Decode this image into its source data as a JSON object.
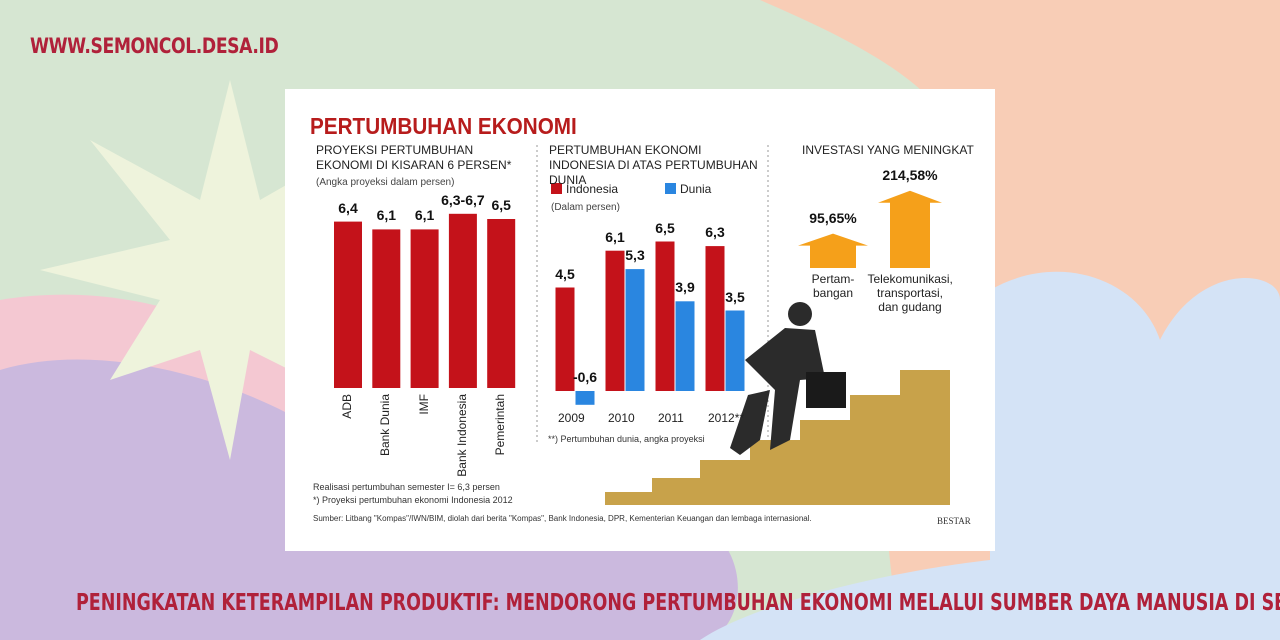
{
  "site": "WWW.SEMONCOL.DESA.ID",
  "headline": "PENINGKATAN KETERAMPILAN PRODUKTIF: MENDORONG PERTUMBUHAN EKONOMI MELALUI SUMBER DAYA MANUSIA DI SEMONCOL",
  "infographic_title": "PERTUMBUHAN EKONOMI",
  "notes": [
    "Realisasi pertumbuhan semester I= 6,3 persen",
    "*) Proyeksi pertumbuhan ekonomi Indonesia 2012"
  ],
  "source": "Sumber: Litbang \"Kompas\"/IWN/BIM, diolah dari berita \"Kompas\", Bank Indonesia, DPR, Kementerian Keuangan dan lembaga internasional.",
  "credit": "BESTAR",
  "chart_data": [
    {
      "type": "bar",
      "title": "PROYEKSI PERTUMBUHAN EKONOMI DI KISARAN 6 PERSEN*",
      "subtitle": "(Angka proyeksi dalam persen)",
      "categories": [
        "ADB",
        "Bank Dunia",
        "IMF",
        "Bank Indonesia",
        "Pemerintah"
      ],
      "values": [
        6.4,
        6.1,
        6.1,
        6.7,
        6.5
      ],
      "value_labels": [
        "6,4",
        "6,1",
        "6,1",
        "6,3-6,7",
        "6,5"
      ],
      "color": "#c4121a"
    },
    {
      "type": "grouped-bar",
      "title": "PERTUMBUHAN EKONOMI INDONESIA DI ATAS PERTUMBUHAN DUNIA",
      "subtitle": "(Dalam persen)",
      "categories": [
        "2009",
        "2010",
        "2011",
        "2012**"
      ],
      "series": [
        {
          "name": "Indonesia",
          "color": "#c4121a",
          "values": [
            4.5,
            6.1,
            6.5,
            6.3
          ],
          "value_labels": [
            "4,5",
            "6,1",
            "6,5",
            "6,3"
          ]
        },
        {
          "name": "Dunia",
          "color": "#2a86e0",
          "values": [
            -0.6,
            5.3,
            3.9,
            3.5
          ],
          "value_labels": [
            "-0,6",
            "5,3",
            "3,9",
            "3,5"
          ]
        }
      ],
      "footnote": "**) Pertumbuhan dunia, angka proyeksi"
    },
    {
      "type": "arrow",
      "title": "INVESTASI YANG MENINGKAT",
      "categories": [
        "Pertam-bangan",
        "Telekomunikasi, transportasi, dan gudang"
      ],
      "values": [
        95.65,
        214.58
      ],
      "value_labels": [
        "95,65%",
        "214,58%"
      ],
      "color": "#f5a01a"
    }
  ]
}
